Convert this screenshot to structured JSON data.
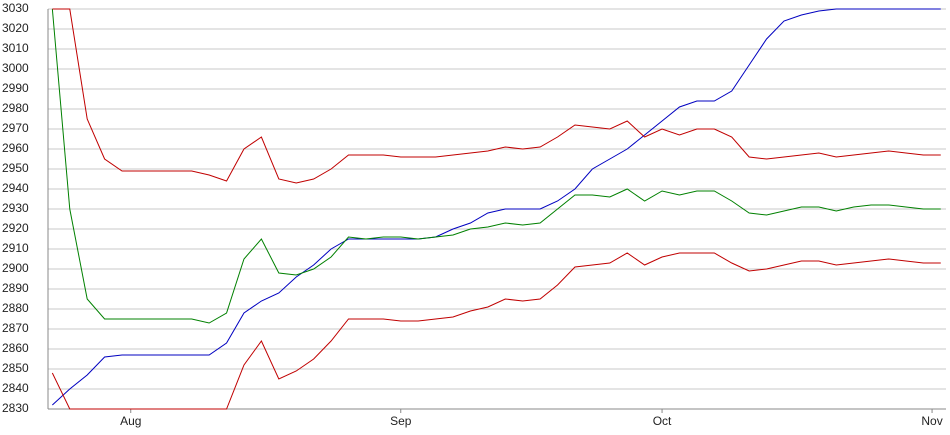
{
  "chart_data": {
    "type": "line",
    "x": [
      -9,
      -7,
      -5,
      -3,
      -1,
      1,
      3,
      5,
      7,
      9,
      11,
      13,
      15,
      17,
      19,
      21,
      23,
      25,
      27,
      29,
      31,
      33,
      35,
      37,
      39,
      41,
      43,
      45,
      47,
      49,
      51,
      53,
      55,
      57,
      59,
      61,
      63,
      65,
      67,
      69,
      71,
      73,
      75,
      77,
      79,
      81,
      83,
      85,
      87,
      89,
      91,
      93
    ],
    "series": [
      {
        "color": "#0000c0",
        "values": [
          2832,
          2840,
          2847,
          2856,
          2857,
          2857,
          2857,
          2857,
          2857,
          2857,
          2863,
          2878,
          2884,
          2888,
          2896,
          2902,
          2910,
          2915,
          2915,
          2915,
          2915,
          2915,
          2916,
          2920,
          2923,
          2928,
          2930,
          2930,
          2930,
          2934,
          2940,
          2950,
          2955,
          2960,
          2967,
          2974,
          2981,
          2984,
          2984,
          2989,
          3002,
          3015,
          3024,
          3027,
          3029,
          3030,
          3030,
          3030,
          3030,
          3030,
          3030,
          3030
        ]
      },
      {
        "color": "#008000",
        "values": [
          3030,
          2930,
          2885,
          2875,
          2875,
          2875,
          2875,
          2875,
          2875,
          2873,
          2878,
          2905,
          2915,
          2898,
          2897,
          2900,
          2906,
          2916,
          2915,
          2916,
          2916,
          2915,
          2916,
          2917,
          2920,
          2921,
          2923,
          2922,
          2923,
          2930,
          2937,
          2937,
          2936,
          2940,
          2934,
          2939,
          2937,
          2939,
          2939,
          2934,
          2928,
          2927,
          2929,
          2931,
          2931,
          2929,
          2931,
          2932,
          2932,
          2931,
          2930,
          2930
        ]
      },
      {
        "color": "#c00000",
        "values": [
          3030,
          3030,
          2975,
          2955,
          2949,
          2949,
          2949,
          2949,
          2949,
          2947,
          2944,
          2960,
          2966,
          2945,
          2943,
          2945,
          2950,
          2957,
          2957,
          2957,
          2956,
          2956,
          2956,
          2957,
          2958,
          2959,
          2961,
          2960,
          2961,
          2966,
          2972,
          2971,
          2970,
          2974,
          2966,
          2970,
          2967,
          2970,
          2970,
          2966,
          2956,
          2955,
          2956,
          2957,
          2958,
          2956,
          2957,
          2958,
          2959,
          2958,
          2957,
          2957
        ]
      },
      {
        "color": "#c00000",
        "values": [
          2848,
          2830,
          2830,
          2830,
          2830,
          2830,
          2830,
          2830,
          2830,
          2830,
          2830,
          2852,
          2864,
          2845,
          2849,
          2855,
          2864,
          2875,
          2875,
          2875,
          2874,
          2874,
          2875,
          2876,
          2879,
          2881,
          2885,
          2884,
          2885,
          2892,
          2901,
          2902,
          2903,
          2908,
          2902,
          2906,
          2908,
          2908,
          2908,
          2903,
          2899,
          2900,
          2902,
          2904,
          2904,
          2902,
          2903,
          2904,
          2905,
          2904,
          2903,
          2903
        ]
      }
    ],
    "xlim": [
      -9.5,
      93.6
    ],
    "xticks": [
      {
        "value": 0,
        "label": "Aug"
      },
      {
        "value": 31,
        "label": "Sep"
      },
      {
        "value": 61,
        "label": "Oct"
      },
      {
        "value": 92,
        "label": "Nov"
      }
    ],
    "ylim": [
      2830,
      3030
    ],
    "yticks": [
      2830,
      2840,
      2850,
      2860,
      2870,
      2880,
      2890,
      2900,
      2910,
      2920,
      2930,
      2940,
      2950,
      2960,
      2970,
      2980,
      2990,
      3000,
      3010,
      3020,
      3030
    ],
    "grid": true
  }
}
